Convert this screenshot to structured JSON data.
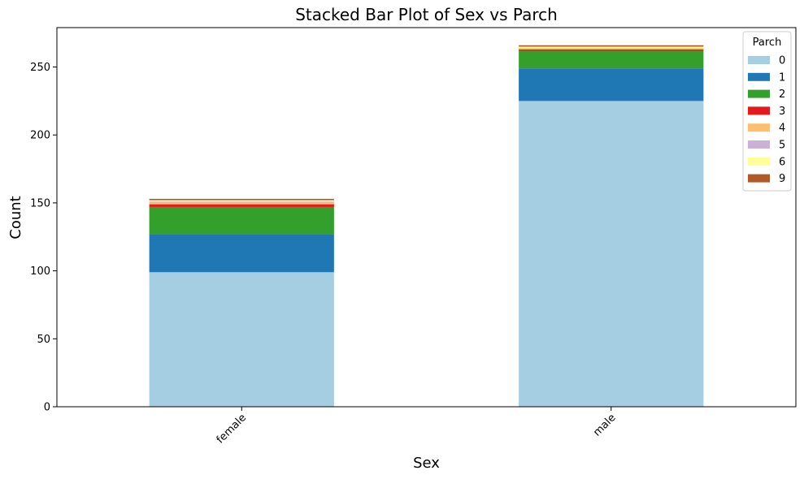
{
  "chart_data": {
    "type": "bar",
    "stacked": true,
    "title": "Stacked Bar Plot of Sex vs Parch",
    "xlabel": "Sex",
    "ylabel": "Count",
    "categories": [
      "female",
      "male"
    ],
    "ylim": [
      0,
      279
    ],
    "yticks": [
      0,
      50,
      100,
      150,
      200,
      250
    ],
    "grid": false,
    "legend": {
      "title": "Parch",
      "placement": "top-right"
    },
    "series": [
      {
        "name": "0",
        "color": "#a6cee3",
        "values": [
          99,
          225
        ]
      },
      {
        "name": "1",
        "color": "#1f78b4",
        "values": [
          28,
          24
        ]
      },
      {
        "name": "2",
        "color": "#33a02c",
        "values": [
          20,
          13
        ]
      },
      {
        "name": "3",
        "color": "#e31a1c",
        "values": [
          2,
          1
        ]
      },
      {
        "name": "4",
        "color": "#fdbf6f",
        "values": [
          1,
          1
        ]
      },
      {
        "name": "5",
        "color": "#cab2d6",
        "values": [
          1,
          0
        ]
      },
      {
        "name": "6",
        "color": "#ffff99",
        "values": [
          1,
          1
        ]
      },
      {
        "name": "9",
        "color": "#b15928",
        "values": [
          1,
          1
        ]
      }
    ]
  }
}
